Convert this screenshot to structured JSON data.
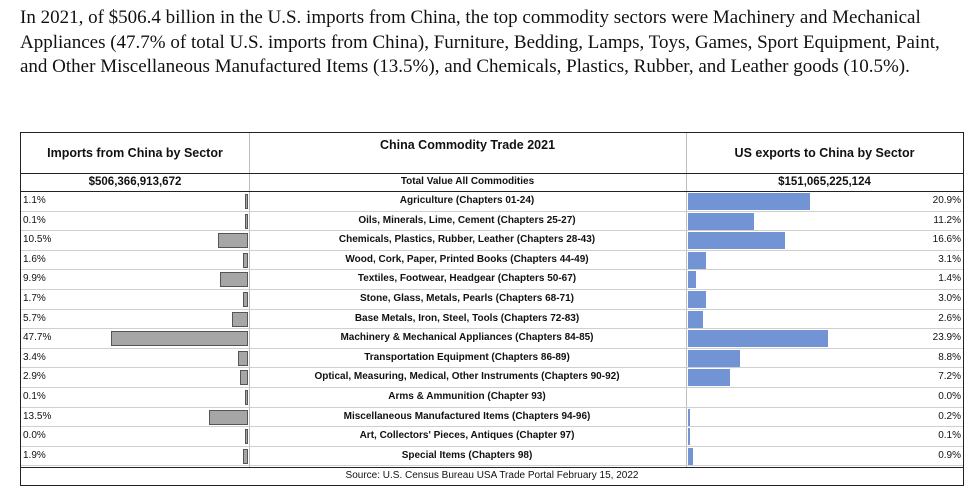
{
  "intro_text": "In 2021, of $506.4 billion in the U.S. imports from China, the top commodity sectors were Machinery and Mechanical Appliances (47.7% of total U.S. imports from China), Furniture, Bedding, Lamps, Toys, Games, Sport Equipment, Paint, and Other Miscellaneous Manufactured Items (13.5%), and Chemicals, Plastics, Rubber, and Leather goods (10.5%).",
  "table": {
    "left_header": "Imports from China by Sector",
    "center_header": "China Commodity Trade 2021",
    "right_header": "US exports to China by Sector",
    "left_total": "$506,366,913,672",
    "center_total": "Total Value All Commodities",
    "right_total": "$151,065,225,124",
    "source": "Source: U.S. Census Bureau USA Trade Portal February 15, 2022"
  },
  "colors": {
    "import_bar": "#a6a6a6",
    "export_bar": "#7294d4"
  },
  "chart_data": {
    "type": "bar",
    "title": "China Commodity Trade 2021",
    "categories": [
      "Agriculture (Chapters 01-24)",
      "Oils, Minerals, Lime, Cement  (Chapters 25-27)",
      "Chemicals, Plastics, Rubber, Leather (Chapters 28-43)",
      "Wood, Cork, Paper, Printed Books (Chapters 44-49)",
      "Textiles, Footwear,  Headgear (Chapters 50-67)",
      "Stone, Glass, Metals, Pearls (Chapters 68-71)",
      "Base Metals, Iron, Steel, Tools (Chapters 72-83)",
      "Machinery & Mechanical Appliances (Chapters 84-85)",
      "Transportation Equipment (Chapters 86-89)",
      "Optical, Measuring, Medical, Other Instruments (Chapters 90-92)",
      "Arms & Ammunition (Chapter 93)",
      "Miscellaneous Manufactured Items (Chapters 94-96)",
      "Art, Collectors' Pieces, Antiques (Chapter 97)",
      "Special Items (Chapters 98)"
    ],
    "series": [
      {
        "name": "Imports from China by Sector",
        "values": [
          1.1,
          0.1,
          10.5,
          1.6,
          9.9,
          1.7,
          5.7,
          47.7,
          3.4,
          2.9,
          0.1,
          13.5,
          0.0,
          1.9
        ],
        "labels": [
          "1.1%",
          "0.1%",
          "10.5%",
          "1.6%",
          "9.9%",
          "1.7%",
          "5.7%",
          "47.7%",
          "3.4%",
          "2.9%",
          "0.1%",
          "13.5%",
          "0.0%",
          "1.9%"
        ]
      },
      {
        "name": "US exports to China by Sector",
        "values": [
          20.9,
          11.2,
          16.6,
          3.1,
          1.4,
          3.0,
          2.6,
          23.9,
          8.8,
          7.2,
          0.0,
          0.2,
          0.1,
          0.9
        ],
        "labels": [
          "20.9%",
          "11.2%",
          "16.6%",
          "3.1%",
          "1.4%",
          "3.0%",
          "2.6%",
          "23.9%",
          "8.8%",
          "7.2%",
          "0.0%",
          "0.2%",
          "0.1%",
          "0.9%"
        ]
      }
    ]
  }
}
